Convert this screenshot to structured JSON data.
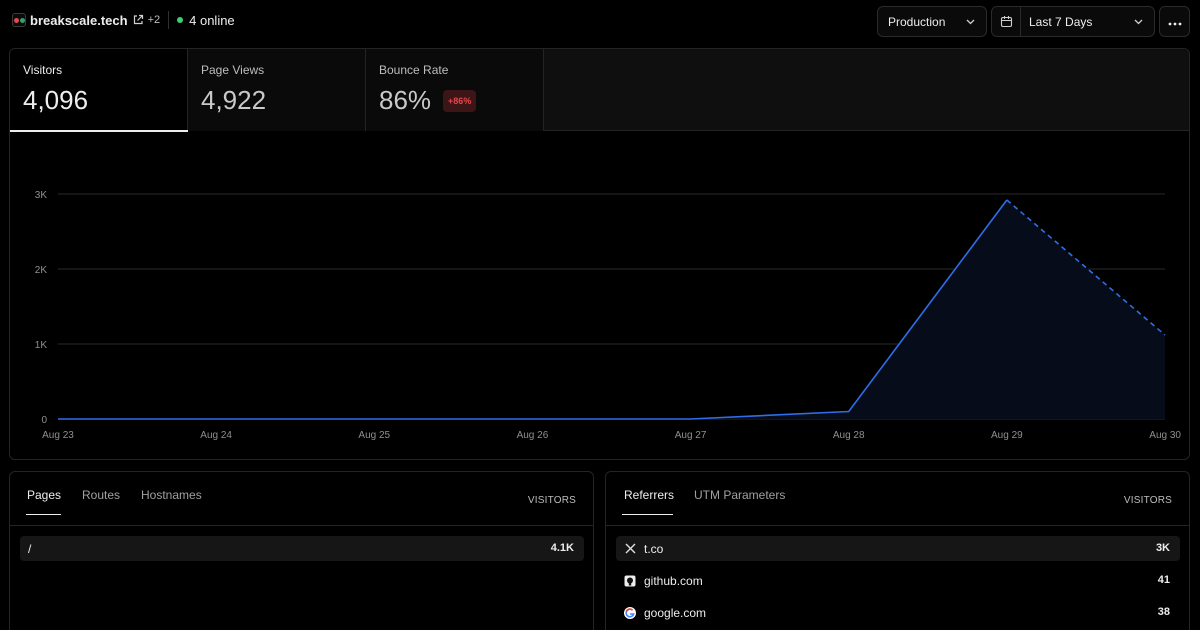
{
  "header": {
    "site_name": "breakscale.tech",
    "extra_sites": "+2",
    "online": "4 online",
    "environment": "Production",
    "date_range": "Last 7 Days"
  },
  "metrics": [
    {
      "label": "Visitors",
      "value": "4,096",
      "badge": ""
    },
    {
      "label": "Page Views",
      "value": "4,922",
      "badge": ""
    },
    {
      "label": "Bounce Rate",
      "value": "86%",
      "badge": "+86%"
    }
  ],
  "chart_data": {
    "type": "area",
    "series": [
      {
        "values": [
          0,
          0,
          0,
          0,
          0,
          100,
          2920,
          1120
        ],
        "projected_from_index": 6
      }
    ],
    "x": [
      "Aug 23",
      "Aug 24",
      "Aug 25",
      "Aug 26",
      "Aug 27",
      "Aug 28",
      "Aug 29",
      "Aug 30"
    ],
    "yticks": [
      0,
      1000,
      2000,
      3000
    ],
    "ytick_labels": [
      "0",
      "1K",
      "2K",
      "3K"
    ],
    "ylim": [
      0,
      3000
    ],
    "grid": true,
    "colors": {
      "line": "#2f6ee8",
      "fill": "#060c19",
      "grid": "#2a2a2a",
      "tick": "#8f8f8f"
    }
  },
  "pages_panel": {
    "tabs": [
      "Pages",
      "Routes",
      "Hostnames"
    ],
    "column_header": "VISITORS",
    "rows": [
      {
        "label": "/",
        "value": "4.1K"
      }
    ]
  },
  "referrers_panel": {
    "tabs": [
      "Referrers",
      "UTM Parameters"
    ],
    "column_header": "VISITORS",
    "rows": [
      {
        "label": "t.co",
        "value": "3K",
        "icon": "x-logo-icon"
      },
      {
        "label": "github.com",
        "value": "41",
        "icon": "github-icon"
      },
      {
        "label": "google.com",
        "value": "38",
        "icon": "google-icon"
      }
    ]
  }
}
